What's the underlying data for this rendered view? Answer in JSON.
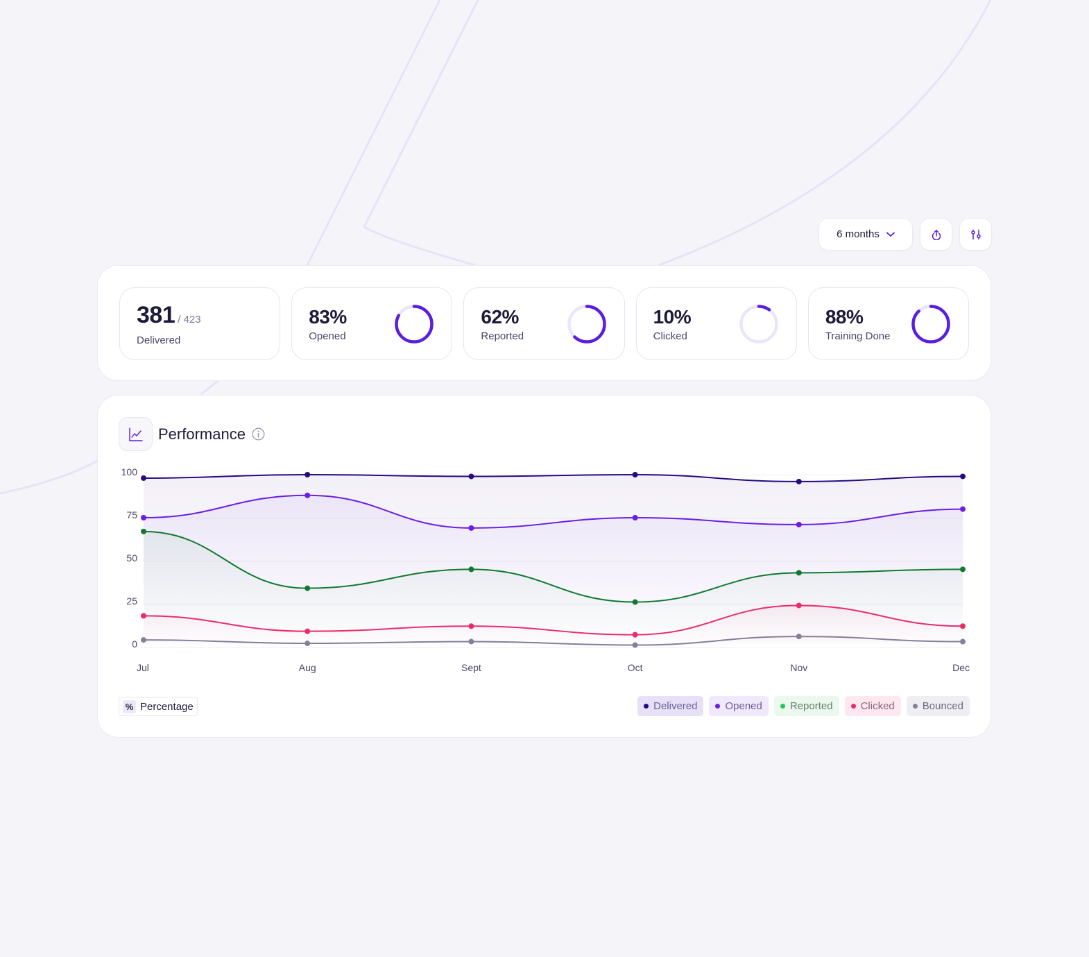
{
  "toolbar": {
    "range_label": "6 months",
    "range_icon": "chevron-down-icon",
    "export_icon": "upload-icon",
    "filter_icon": "sliders-icon"
  },
  "stats": [
    {
      "value": "381",
      "sub": "/ 423",
      "label": "Delivered",
      "progress": null
    },
    {
      "value": "83%",
      "label": "Opened",
      "progress": 0.83
    },
    {
      "value": "62%",
      "label": "Reported",
      "progress": 0.62
    },
    {
      "value": "10%",
      "label": "Clicked",
      "progress": 0.1
    },
    {
      "value": "88%",
      "label": "Training Done",
      "progress": 0.88
    }
  ],
  "colors": {
    "ring": "#5a1ee0",
    "ring_track": "#ebe5fa",
    "background": "#f5f4f9",
    "accent_line": "#e7e3f7"
  },
  "performance": {
    "title": "Performance",
    "chart_icon": "line-chart-icon",
    "info_icon": "info-icon",
    "unit_symbol": "%",
    "unit_label": "Percentage"
  },
  "chart_data": {
    "type": "line",
    "categories": [
      "Jul",
      "Aug",
      "Sept",
      "Oct",
      "Nov",
      "Dec"
    ],
    "ylim": [
      0,
      100
    ],
    "yticks": [
      0,
      25,
      50,
      75,
      100
    ],
    "grid": true,
    "legend_position": "bottom-right",
    "series": [
      {
        "name": "Delivered",
        "color": "#2a0a82",
        "legend_bg": "#e7e1f8",
        "legend_text": "#6b5f99",
        "values": [
          98,
          100,
          99,
          100,
          96,
          99
        ]
      },
      {
        "name": "Opened",
        "color": "#6a1ee6",
        "legend_bg": "#efe9fb",
        "legend_text": "#6b5f99",
        "values": [
          75,
          88,
          69,
          75,
          71,
          80
        ]
      },
      {
        "name": "Reported",
        "color": "#0f7a2e",
        "dot": "#22c55e",
        "legend_bg": "#eaf8ee",
        "legend_text": "#6b7f73",
        "values": [
          67,
          34,
          45,
          26,
          43,
          45
        ]
      },
      {
        "name": "Clicked",
        "color": "#ea2c6a",
        "legend_bg": "#fde8ef",
        "legend_text": "#8a6477",
        "values": [
          18,
          9,
          12,
          7,
          24,
          12
        ]
      },
      {
        "name": "Bounced",
        "color": "#82809a",
        "legend_bg": "#efeef3",
        "legend_text": "#6b6980",
        "values": [
          4,
          2,
          3,
          1,
          6,
          3
        ]
      }
    ]
  }
}
